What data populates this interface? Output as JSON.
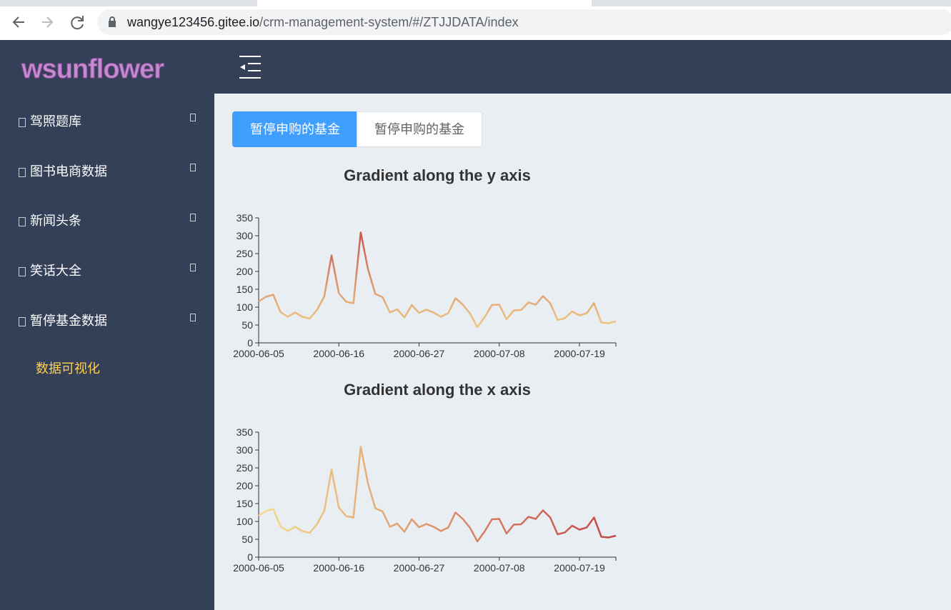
{
  "browser": {
    "url_host": "wangye123456.gitee.io",
    "url_path": "/crm-management-system/#/ZTJJDATA/index"
  },
  "sidebar": {
    "logo": "wsunflower",
    "menu": [
      "驾照题库",
      "图书电商数据",
      "新闻头条",
      "笑话大全",
      "暂停基金数据"
    ],
    "submenu": "数据可视化"
  },
  "tabs": [
    "暂停申购的基金",
    "暂停申购的基金"
  ],
  "chart_data": [
    {
      "type": "line",
      "title": "Gradient along the y axis",
      "gradient_axis": "y",
      "gradient": [
        "#f5dc8a",
        "#c4464a"
      ],
      "categories": [
        "2000-06-05",
        null,
        null,
        null,
        null,
        null,
        null,
        null,
        null,
        null,
        null,
        "2000-06-16",
        null,
        null,
        null,
        null,
        null,
        null,
        null,
        null,
        null,
        null,
        "2000-06-27",
        null,
        null,
        null,
        null,
        null,
        null,
        null,
        null,
        null,
        null,
        "2000-07-08",
        null,
        null,
        null,
        null,
        null,
        null,
        null,
        null,
        null,
        null,
        "2000-07-19",
        null,
        null,
        null,
        null,
        null
      ],
      "values": [
        116,
        129,
        135,
        86,
        73,
        85,
        73,
        68,
        92,
        130,
        245,
        139,
        115,
        111,
        309,
        206,
        137,
        128,
        85,
        94,
        71,
        106,
        84,
        93,
        85,
        73,
        83,
        125,
        107,
        82,
        44,
        72,
        106,
        107,
        66,
        91,
        92,
        113,
        107,
        131,
        111,
        64,
        69,
        88,
        77,
        83,
        111,
        57,
        55,
        60
      ],
      "ylim": [
        0,
        350
      ],
      "yticks": [
        0,
        50,
        100,
        150,
        200,
        250,
        300,
        350
      ]
    },
    {
      "type": "line",
      "title": "Gradient along the x axis",
      "gradient_axis": "x",
      "gradient": [
        "#f5dc8a",
        "#c4464a"
      ],
      "categories": [
        "2000-06-05",
        null,
        null,
        null,
        null,
        null,
        null,
        null,
        null,
        null,
        null,
        "2000-06-16",
        null,
        null,
        null,
        null,
        null,
        null,
        null,
        null,
        null,
        null,
        "2000-06-27",
        null,
        null,
        null,
        null,
        null,
        null,
        null,
        null,
        null,
        null,
        "2000-07-08",
        null,
        null,
        null,
        null,
        null,
        null,
        null,
        null,
        null,
        null,
        "2000-07-19",
        null,
        null,
        null,
        null,
        null
      ],
      "values": [
        116,
        129,
        135,
        86,
        73,
        85,
        73,
        68,
        92,
        130,
        245,
        139,
        115,
        111,
        309,
        206,
        137,
        128,
        85,
        94,
        71,
        106,
        84,
        93,
        85,
        73,
        83,
        125,
        107,
        82,
        44,
        72,
        106,
        107,
        66,
        91,
        92,
        113,
        107,
        131,
        111,
        64,
        69,
        88,
        77,
        83,
        111,
        57,
        55,
        60
      ],
      "ylim": [
        0,
        350
      ],
      "yticks": [
        0,
        50,
        100,
        150,
        200,
        250,
        300,
        350
      ]
    }
  ]
}
